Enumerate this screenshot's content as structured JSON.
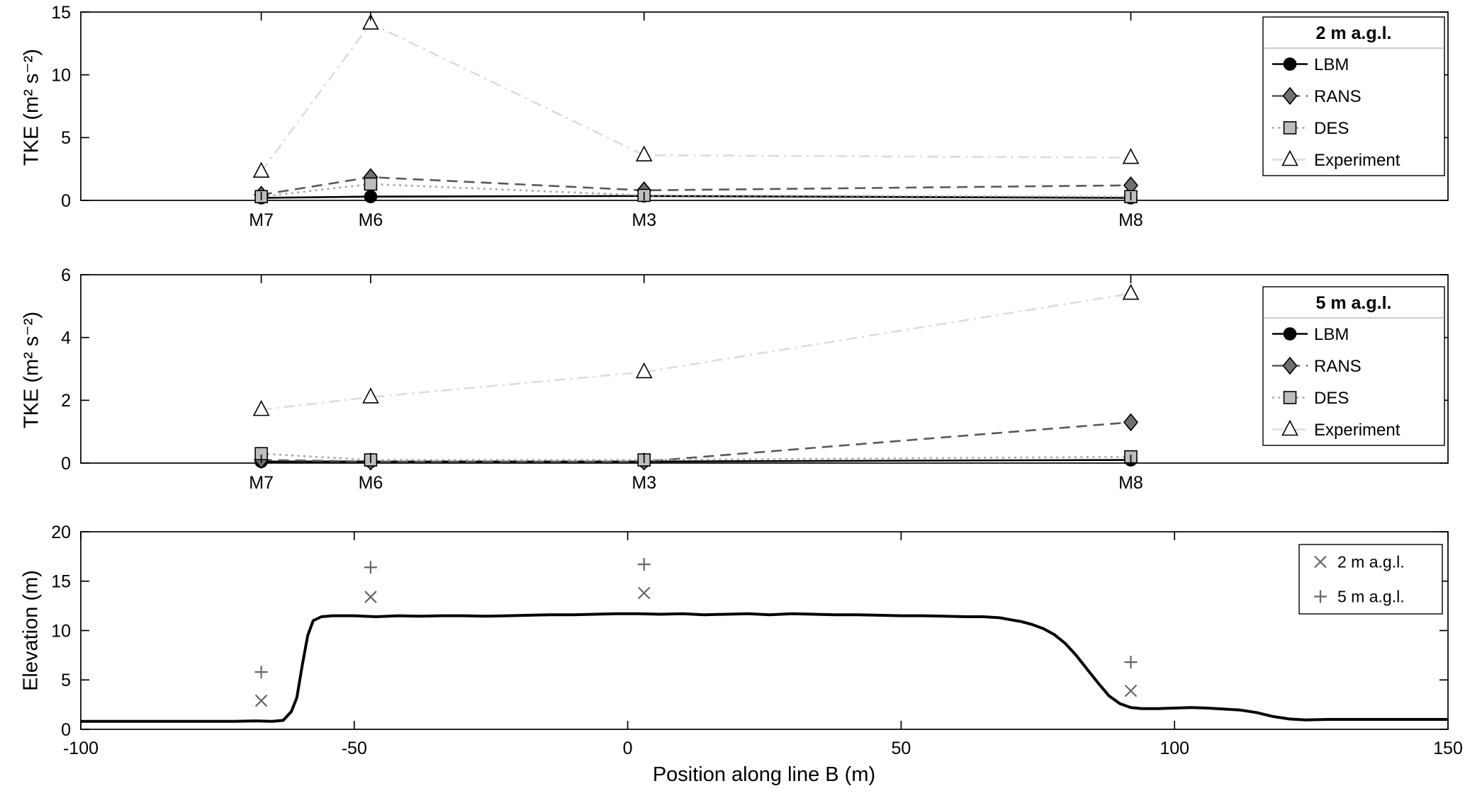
{
  "figure": {
    "background": "#ffffff",
    "xlabel": "Position along line B (m)",
    "xlim": [
      -100,
      150
    ],
    "x_ticks": [
      -100,
      -50,
      0,
      50,
      100,
      150
    ]
  },
  "chart_data": [
    {
      "type": "line",
      "name": "tke-2magl",
      "legend_title": "2 m a.g.l.",
      "legend_position": "upper-right",
      "ylabel": "TKE (m² s⁻²)",
      "ylim": [
        0,
        15
      ],
      "y_ticks": [
        0,
        5,
        10,
        15
      ],
      "x": [
        -67,
        -47,
        3,
        92
      ],
      "x_point_labels": [
        "M7",
        "M6",
        "M3",
        "M8"
      ],
      "series": [
        {
          "name": "LBM",
          "marker": "circle",
          "linestyle": "solid",
          "line_color": "#000000",
          "marker_fill": "#000000",
          "marker_edge": "#000000",
          "values": [
            0.2,
            0.3,
            0.35,
            0.2
          ]
        },
        {
          "name": "RANS",
          "marker": "diamond",
          "linestyle": "dashed",
          "line_color": "#595959",
          "marker_fill": "#707070",
          "marker_edge": "#000000",
          "values": [
            0.45,
            1.85,
            0.8,
            1.2
          ]
        },
        {
          "name": "DES",
          "marker": "square",
          "linestyle": "dotted",
          "line_color": "#a6a6a6",
          "marker_fill": "#bdbdbd",
          "marker_edge": "#000000",
          "values": [
            0.3,
            1.3,
            0.4,
            0.3
          ]
        },
        {
          "name": "Experiment",
          "marker": "triangle",
          "linestyle": "dashdot",
          "line_color": "#dcdcdc",
          "marker_fill": "#ffffff",
          "marker_edge": "#000000",
          "values": [
            2.3,
            14.1,
            3.6,
            3.4
          ]
        }
      ]
    },
    {
      "type": "line",
      "name": "tke-5magl",
      "legend_title": "5 m a.g.l.",
      "legend_position": "upper-right",
      "ylabel": "TKE (m² s⁻²)",
      "ylim": [
        0,
        6
      ],
      "y_ticks": [
        0,
        2,
        4,
        6
      ],
      "x": [
        -67,
        -47,
        3,
        92
      ],
      "x_point_labels": [
        "M7",
        "M6",
        "M3",
        "M8"
      ],
      "series": [
        {
          "name": "LBM",
          "marker": "circle",
          "linestyle": "solid",
          "line_color": "#000000",
          "marker_fill": "#000000",
          "marker_edge": "#000000",
          "values": [
            0.05,
            0.05,
            0.05,
            0.1
          ]
        },
        {
          "name": "RANS",
          "marker": "diamond",
          "linestyle": "dashed",
          "line_color": "#595959",
          "marker_fill": "#707070",
          "marker_edge": "#000000",
          "values": [
            0.1,
            0.05,
            0.05,
            1.3
          ]
        },
        {
          "name": "DES",
          "marker": "square",
          "linestyle": "dotted",
          "line_color": "#a6a6a6",
          "marker_fill": "#bdbdbd",
          "marker_edge": "#000000",
          "values": [
            0.3,
            0.1,
            0.1,
            0.2
          ]
        },
        {
          "name": "Experiment",
          "marker": "triangle",
          "linestyle": "dashdot",
          "line_color": "#dcdcdc",
          "marker_fill": "#ffffff",
          "marker_edge": "#000000",
          "values": [
            1.7,
            2.1,
            2.9,
            5.4
          ]
        }
      ]
    },
    {
      "type": "line",
      "name": "elevation-profile",
      "ylabel": "Elevation (m)",
      "ylim": [
        0,
        20
      ],
      "y_ticks": [
        0,
        5,
        10,
        15,
        20
      ],
      "terrain": {
        "name": "terrain-line",
        "color": "#000000",
        "x": [
          -100,
          -80,
          -72,
          -68,
          -65,
          -63,
          -61.5,
          -60.5,
          -59.5,
          -58.5,
          -57.5,
          -56,
          -54,
          -50,
          -46,
          -42,
          -38,
          -34,
          -30,
          -26,
          -22,
          -18,
          -14,
          -10,
          -6,
          -2,
          2,
          6,
          10,
          14,
          18,
          22,
          26,
          30,
          34,
          38,
          42,
          46,
          50,
          54,
          58,
          62,
          65,
          68,
          70,
          72,
          74,
          76,
          78,
          80,
          82,
          84,
          86,
          88,
          90,
          92,
          94,
          97,
          100,
          103,
          106,
          109,
          112,
          115,
          118,
          121,
          124,
          128,
          133,
          140,
          150
        ],
        "y": [
          0.8,
          0.8,
          0.8,
          0.85,
          0.8,
          0.9,
          1.8,
          3.2,
          6.5,
          9.5,
          11.0,
          11.4,
          11.5,
          11.5,
          11.4,
          11.5,
          11.45,
          11.5,
          11.5,
          11.45,
          11.5,
          11.55,
          11.6,
          11.6,
          11.65,
          11.7,
          11.7,
          11.65,
          11.7,
          11.6,
          11.65,
          11.7,
          11.6,
          11.7,
          11.65,
          11.6,
          11.6,
          11.55,
          11.5,
          11.5,
          11.45,
          11.4,
          11.4,
          11.3,
          11.1,
          10.9,
          10.6,
          10.2,
          9.6,
          8.7,
          7.5,
          6.1,
          4.7,
          3.4,
          2.6,
          2.2,
          2.1,
          2.1,
          2.15,
          2.2,
          2.15,
          2.05,
          1.95,
          1.7,
          1.3,
          1.05,
          0.95,
          1.0,
          1.0,
          1.0,
          1.0
        ]
      },
      "mast_markers": [
        {
          "name": "2 m a.g.l.",
          "marker": "x",
          "color": "#666666",
          "x": [
            -67,
            -47,
            3,
            92
          ],
          "values": [
            2.9,
            13.4,
            13.8,
            3.9
          ]
        },
        {
          "name": "5 m a.g.l.",
          "marker": "plus",
          "color": "#666666",
          "x": [
            -67,
            -47,
            3,
            92
          ],
          "values": [
            5.8,
            16.4,
            16.7,
            6.8
          ]
        }
      ]
    }
  ]
}
